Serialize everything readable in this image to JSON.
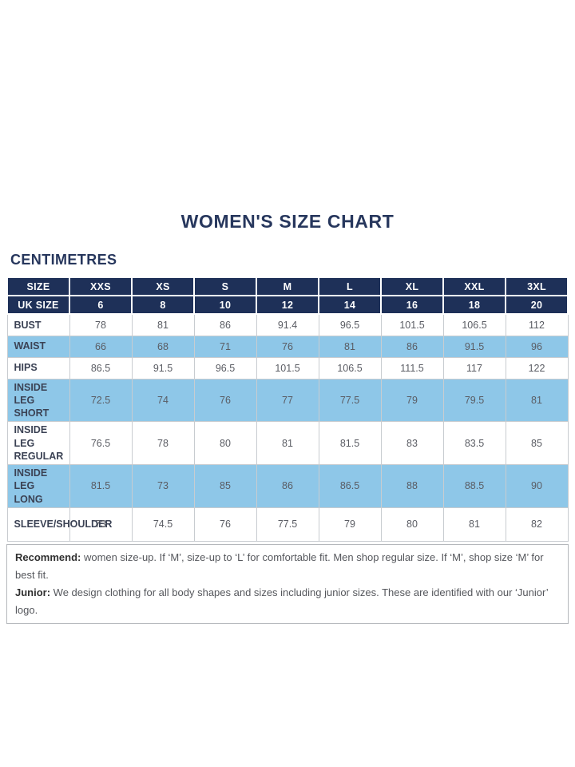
{
  "title": "WOMEN'S SIZE CHART",
  "unit_label": "CENTIMETRES",
  "colors": {
    "header_navy": "#1e3058",
    "row_highlight_blue": "#8ec7e8",
    "title_navy": "#27375d"
  },
  "table": {
    "header_rows": [
      {
        "label": "SIZE",
        "values": [
          "XXS",
          "XS",
          "S",
          "M",
          "L",
          "XL",
          "XXL",
          "3XL"
        ]
      },
      {
        "label": "UK SIZE",
        "values": [
          "6",
          "8",
          "10",
          "12",
          "14",
          "16",
          "18",
          "20"
        ]
      }
    ],
    "rows": [
      {
        "label": "BUST",
        "highlight": false,
        "values": [
          "78",
          "81",
          "86",
          "91.4",
          "96.5",
          "101.5",
          "106.5",
          "112"
        ]
      },
      {
        "label": "WAIST",
        "highlight": true,
        "values": [
          "66",
          "68",
          "71",
          "76",
          "81",
          "86",
          "91.5",
          "96"
        ]
      },
      {
        "label": "HIPS",
        "highlight": false,
        "values": [
          "86.5",
          "91.5",
          "96.5",
          "101.5",
          "106.5",
          "111.5",
          "117",
          "122"
        ]
      },
      {
        "label": "INSIDE LEG SHORT",
        "highlight": true,
        "values": [
          "72.5",
          "74",
          "76",
          "77",
          "77.5",
          "79",
          "79.5",
          "81"
        ]
      },
      {
        "label": "INSIDE LEG REGULAR",
        "highlight": false,
        "values": [
          "76.5",
          "78",
          "80",
          "81",
          "81.5",
          "83",
          "83.5",
          "85"
        ]
      },
      {
        "label": "INSIDE LEG LONG",
        "highlight": true,
        "values": [
          "81.5",
          "73",
          "85",
          "86",
          "86.5",
          "88",
          "88.5",
          "90"
        ]
      },
      {
        "label": "SLEEVE/SHOULDER",
        "highlight": false,
        "values": [
          "73",
          "74.5",
          "76",
          "77.5",
          "79",
          "80",
          "81",
          "82"
        ]
      }
    ]
  },
  "notes": [
    {
      "bold": "Recommend:",
      "text": " women size-up. If ‘M’, size-up to ‘L’ for comfortable fit. Men shop regular size. If ‘M’, shop size ‘M’ for best fit."
    },
    {
      "bold": "Junior:",
      "text": " We design clothing for all body shapes and sizes including junior sizes. These are identified with our ‘Junior’ logo."
    }
  ],
  "chart_data": {
    "type": "table",
    "title": "WOMEN'S SIZE CHART",
    "unit": "CENTIMETRES",
    "columns": [
      "SIZE",
      "XXS",
      "XS",
      "S",
      "M",
      "L",
      "XL",
      "XXL",
      "3XL"
    ],
    "uk_sizes": [
      6,
      8,
      10,
      12,
      14,
      16,
      18,
      20
    ],
    "rows": [
      {
        "measure": "BUST",
        "values_cm": [
          78,
          81,
          86,
          91.4,
          96.5,
          101.5,
          106.5,
          112
        ]
      },
      {
        "measure": "WAIST",
        "values_cm": [
          66,
          68,
          71,
          76,
          81,
          86,
          91.5,
          96
        ]
      },
      {
        "measure": "HIPS",
        "values_cm": [
          86.5,
          91.5,
          96.5,
          101.5,
          106.5,
          111.5,
          117,
          122
        ]
      },
      {
        "measure": "INSIDE LEG SHORT",
        "values_cm": [
          72.5,
          74,
          76,
          77,
          77.5,
          79,
          79.5,
          81
        ]
      },
      {
        "measure": "INSIDE LEG REGULAR",
        "values_cm": [
          76.5,
          78,
          80,
          81,
          81.5,
          83,
          83.5,
          85
        ]
      },
      {
        "measure": "INSIDE LEG LONG",
        "values_cm": [
          81.5,
          73,
          85,
          86,
          86.5,
          88,
          88.5,
          90
        ]
      },
      {
        "measure": "SLEEVE/SHOULDER",
        "values_cm": [
          73,
          74.5,
          76,
          77.5,
          79,
          80,
          81,
          82
        ]
      }
    ]
  }
}
